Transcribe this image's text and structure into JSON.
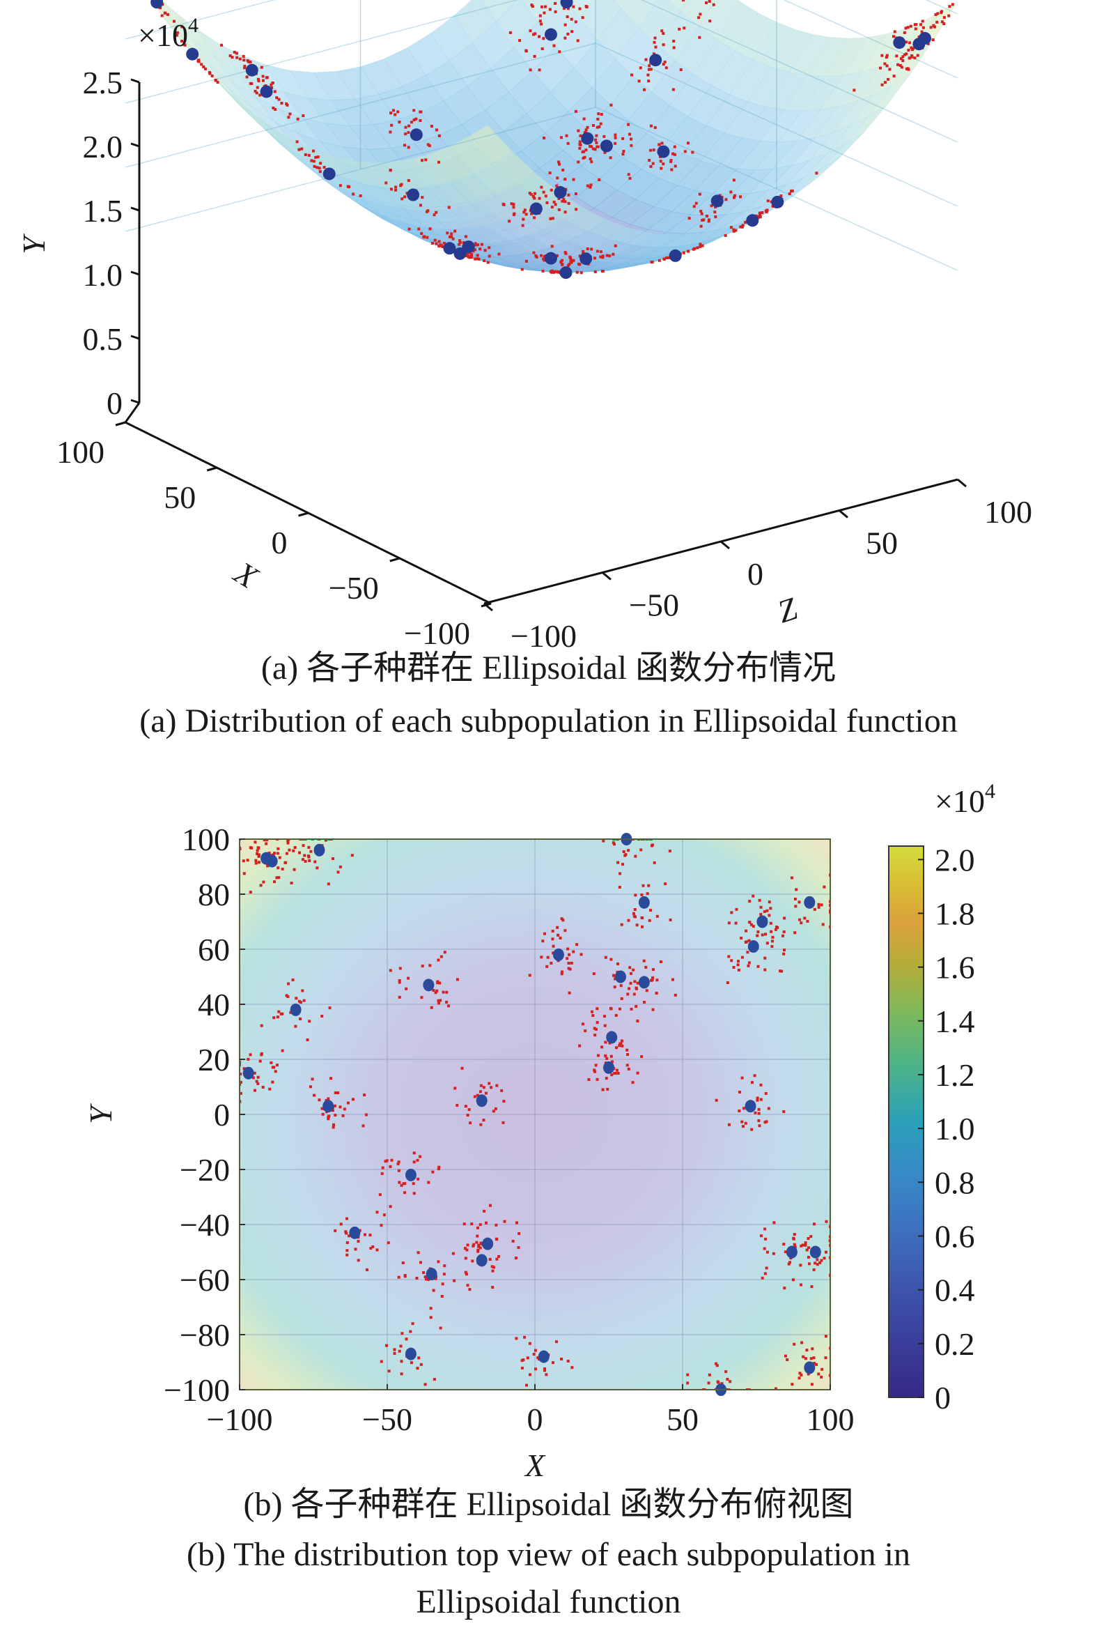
{
  "chart_data": [
    {
      "id": "a",
      "type": "scatter",
      "subtype": "3d-surface-scatter",
      "title": "",
      "caption_cn": "(a) 各子种群在 Ellipsoidal 函数分布情况",
      "caption_en": "(a) Distribution of each subpopulation in Ellipsoidal function",
      "xlabel": "X",
      "ylabel": "Y",
      "zlabel": "Z",
      "y_exponent_label": "×10",
      "y_exponent_power": "4",
      "xlim": [
        -100,
        100
      ],
      "zlim": [
        -100,
        100
      ],
      "ylim": [
        0,
        25000
      ],
      "x_ticks": [
        "100",
        "50",
        "0",
        "−50",
        "−100"
      ],
      "x_tick_values": [
        100,
        50,
        0,
        -50,
        -100
      ],
      "z_ticks": [
        "−100",
        "−50",
        "0",
        "50",
        "100"
      ],
      "z_tick_values": [
        -100,
        -50,
        0,
        50,
        100
      ],
      "y_ticks": [
        "0",
        "0.5",
        "1.0",
        "1.5",
        "2.0",
        "2.5"
      ],
      "y_tick_values": [
        0,
        5000,
        10000,
        15000,
        20000,
        25000
      ],
      "surface": "f(x,z) = x^2 + 2·z^2 (Ellipsoidal), translucent parula colormap",
      "series": [
        {
          "name": "subpopulation centers",
          "color": "#263a8f",
          "points_xz": [
            [
              -91,
              93
            ],
            [
              -89,
              92
            ],
            [
              -73,
              96
            ],
            [
              31,
              100
            ],
            [
              37,
              77
            ],
            [
              93,
              77
            ],
            [
              77,
              70
            ],
            [
              74,
              61
            ],
            [
              8,
              58
            ],
            [
              29,
              50
            ],
            [
              37,
              48
            ],
            [
              -36,
              47
            ],
            [
              -81,
              38
            ],
            [
              26,
              28
            ],
            [
              25,
              17
            ],
            [
              -97,
              15
            ],
            [
              -70,
              3
            ],
            [
              -18,
              5
            ],
            [
              73,
              3
            ],
            [
              -42,
              -22
            ],
            [
              -61,
              -43
            ],
            [
              -16,
              -47
            ],
            [
              -18,
              -53
            ],
            [
              -35,
              -58
            ],
            [
              87,
              -50
            ],
            [
              95,
              -50
            ],
            [
              -42,
              -87
            ],
            [
              3,
              -88
            ],
            [
              93,
              -92
            ],
            [
              63,
              -100
            ]
          ]
        },
        {
          "name": "individuals",
          "color": "#d62020",
          "count_approx": 900
        }
      ]
    },
    {
      "id": "b",
      "type": "scatter",
      "subtype": "heatmap-with-scatter",
      "title": "",
      "caption_cn": "(b) 各子种群在 Ellipsoidal 函数分布俯视图",
      "caption_en_line1": "(b) The distribution top view of each subpopulation in",
      "caption_en_line2": "Ellipsoidal function",
      "xlabel": "X",
      "ylabel": "Y",
      "xlim": [
        -100,
        100
      ],
      "ylim": [
        -100,
        100
      ],
      "x_ticks": [
        "−100",
        "−50",
        "0",
        "50",
        "100"
      ],
      "x_tick_values": [
        -100,
        -50,
        0,
        50,
        100
      ],
      "y_ticks": [
        "100",
        "80",
        "60",
        "40",
        "20",
        "0",
        "−20",
        "−40",
        "−60",
        "−80",
        "−100"
      ],
      "y_tick_values": [
        100,
        80,
        60,
        40,
        20,
        0,
        -20,
        -40,
        -60,
        -80,
        -100
      ],
      "grid": true,
      "colorbar": {
        "exponent_label": "×10",
        "exponent_power": "4",
        "range": [
          0,
          20500
        ],
        "ticks": [
          "2.0",
          "1.8",
          "1.6",
          "1.4",
          "1.2",
          "1.0",
          "0.8",
          "0.6",
          "0.4",
          "0.2",
          "0"
        ],
        "tick_values": [
          20000,
          18000,
          16000,
          14000,
          12000,
          10000,
          8000,
          6000,
          4000,
          2000,
          0
        ],
        "colormap": [
          "#352a87",
          "#3e4ea1",
          "#2a6fcb",
          "#1d91c0",
          "#2ba8b0",
          "#4cb98d",
          "#80bf5f",
          "#b9bc3b",
          "#e1b233",
          "#f0c23a",
          "#d9dc2e"
        ]
      },
      "series": [
        {
          "name": "subpopulation centers",
          "color": "#2a4a9c",
          "points": [
            [
              -91,
              93
            ],
            [
              -89,
              92
            ],
            [
              -73,
              96
            ],
            [
              31,
              100
            ],
            [
              37,
              77
            ],
            [
              93,
              77
            ],
            [
              77,
              70
            ],
            [
              74,
              61
            ],
            [
              8,
              58
            ],
            [
              29,
              50
            ],
            [
              37,
              48
            ],
            [
              -36,
              47
            ],
            [
              -81,
              38
            ],
            [
              26,
              28
            ],
            [
              25,
              17
            ],
            [
              -97,
              15
            ],
            [
              -70,
              3
            ],
            [
              -18,
              5
            ],
            [
              73,
              3
            ],
            [
              -42,
              -22
            ],
            [
              -61,
              -43
            ],
            [
              -16,
              -47
            ],
            [
              -18,
              -53
            ],
            [
              -35,
              -58
            ],
            [
              87,
              -50
            ],
            [
              95,
              -50
            ],
            [
              -42,
              -87
            ],
            [
              3,
              -88
            ],
            [
              93,
              -92
            ],
            [
              63,
              -100
            ]
          ]
        },
        {
          "name": "individuals",
          "color": "#d62020",
          "count_approx": 900,
          "note": "scattered around each subpopulation center"
        }
      ]
    }
  ]
}
